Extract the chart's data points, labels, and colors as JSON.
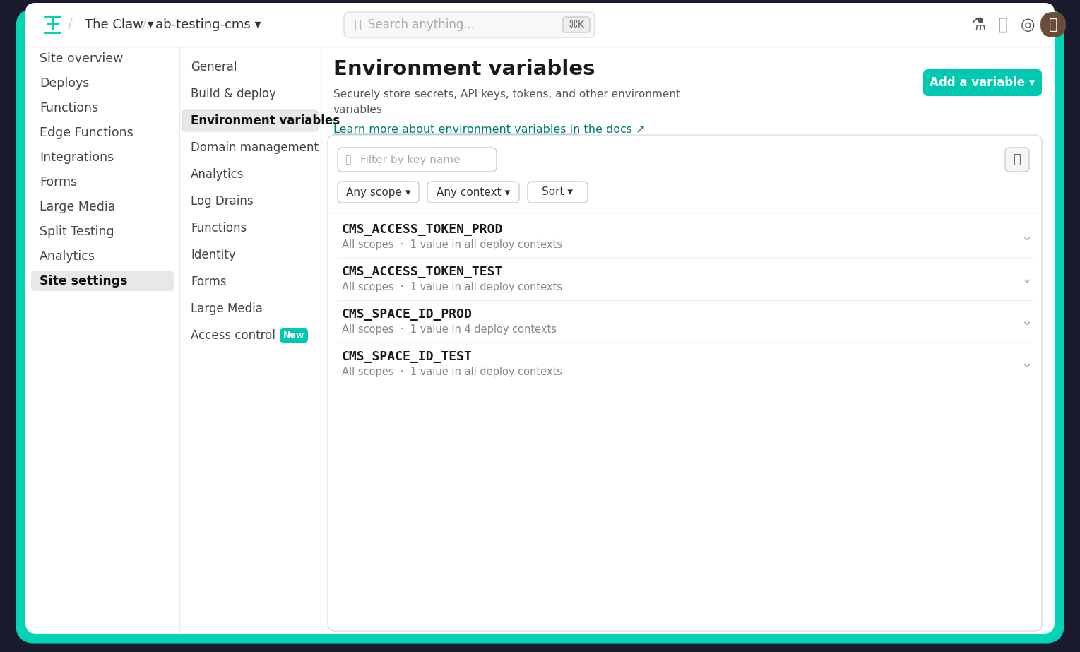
{
  "bg_outer": "#1a1a2e",
  "bg_white": "#ffffff",
  "bg_card": "#ffffff",
  "border_teal": "#00d4b4",
  "teal_btn": "#00c9b1",
  "title": "Environment variables",
  "subtitle": "Securely store secrets, API keys, tokens, and other environment\nvariables",
  "learn_more": "Learn more about environment variables in the docs ↗",
  "add_btn": "Add a variable ▾",
  "filter_placeholder": "Filter by key name",
  "scope_btn": "Any scope ▾",
  "context_btn": "Any context ▾",
  "sort_btn": "Sort ▾",
  "nav_items_left": [
    "Site overview",
    "Deploys",
    "Functions",
    "Edge Functions",
    "Integrations",
    "Forms",
    "Large Media",
    "Split Testing",
    "Analytics",
    "Site settings"
  ],
  "active_nav": "Site settings",
  "submenu_items": [
    "General",
    "Build & deploy",
    "Environment variables",
    "Domain management",
    "Analytics",
    "Log Drains",
    "Functions",
    "Identity",
    "Forms",
    "Large Media",
    "Access control"
  ],
  "active_submenu": "Environment variables",
  "new_badge": "New",
  "env_vars": [
    {
      "name": "CMS_ACCESS_TOKEN_PROD",
      "sub": "All scopes  ·  1 value in all deploy contexts"
    },
    {
      "name": "CMS_ACCESS_TOKEN_TEST",
      "sub": "All scopes  ·  1 value in all deploy contexts"
    },
    {
      "name": "CMS_SPACE_ID_PROD",
      "sub": "All scopes  ·  1 value in 4 deploy contexts"
    },
    {
      "name": "CMS_SPACE_ID_TEST",
      "sub": "All scopes  ·  1 value in all deploy contexts"
    }
  ],
  "header_brand": "The Claw ▾",
  "header_project": "ab-testing-cms ▾",
  "header_search": "Search anything...",
  "kbd_shortcut": "⌘K"
}
